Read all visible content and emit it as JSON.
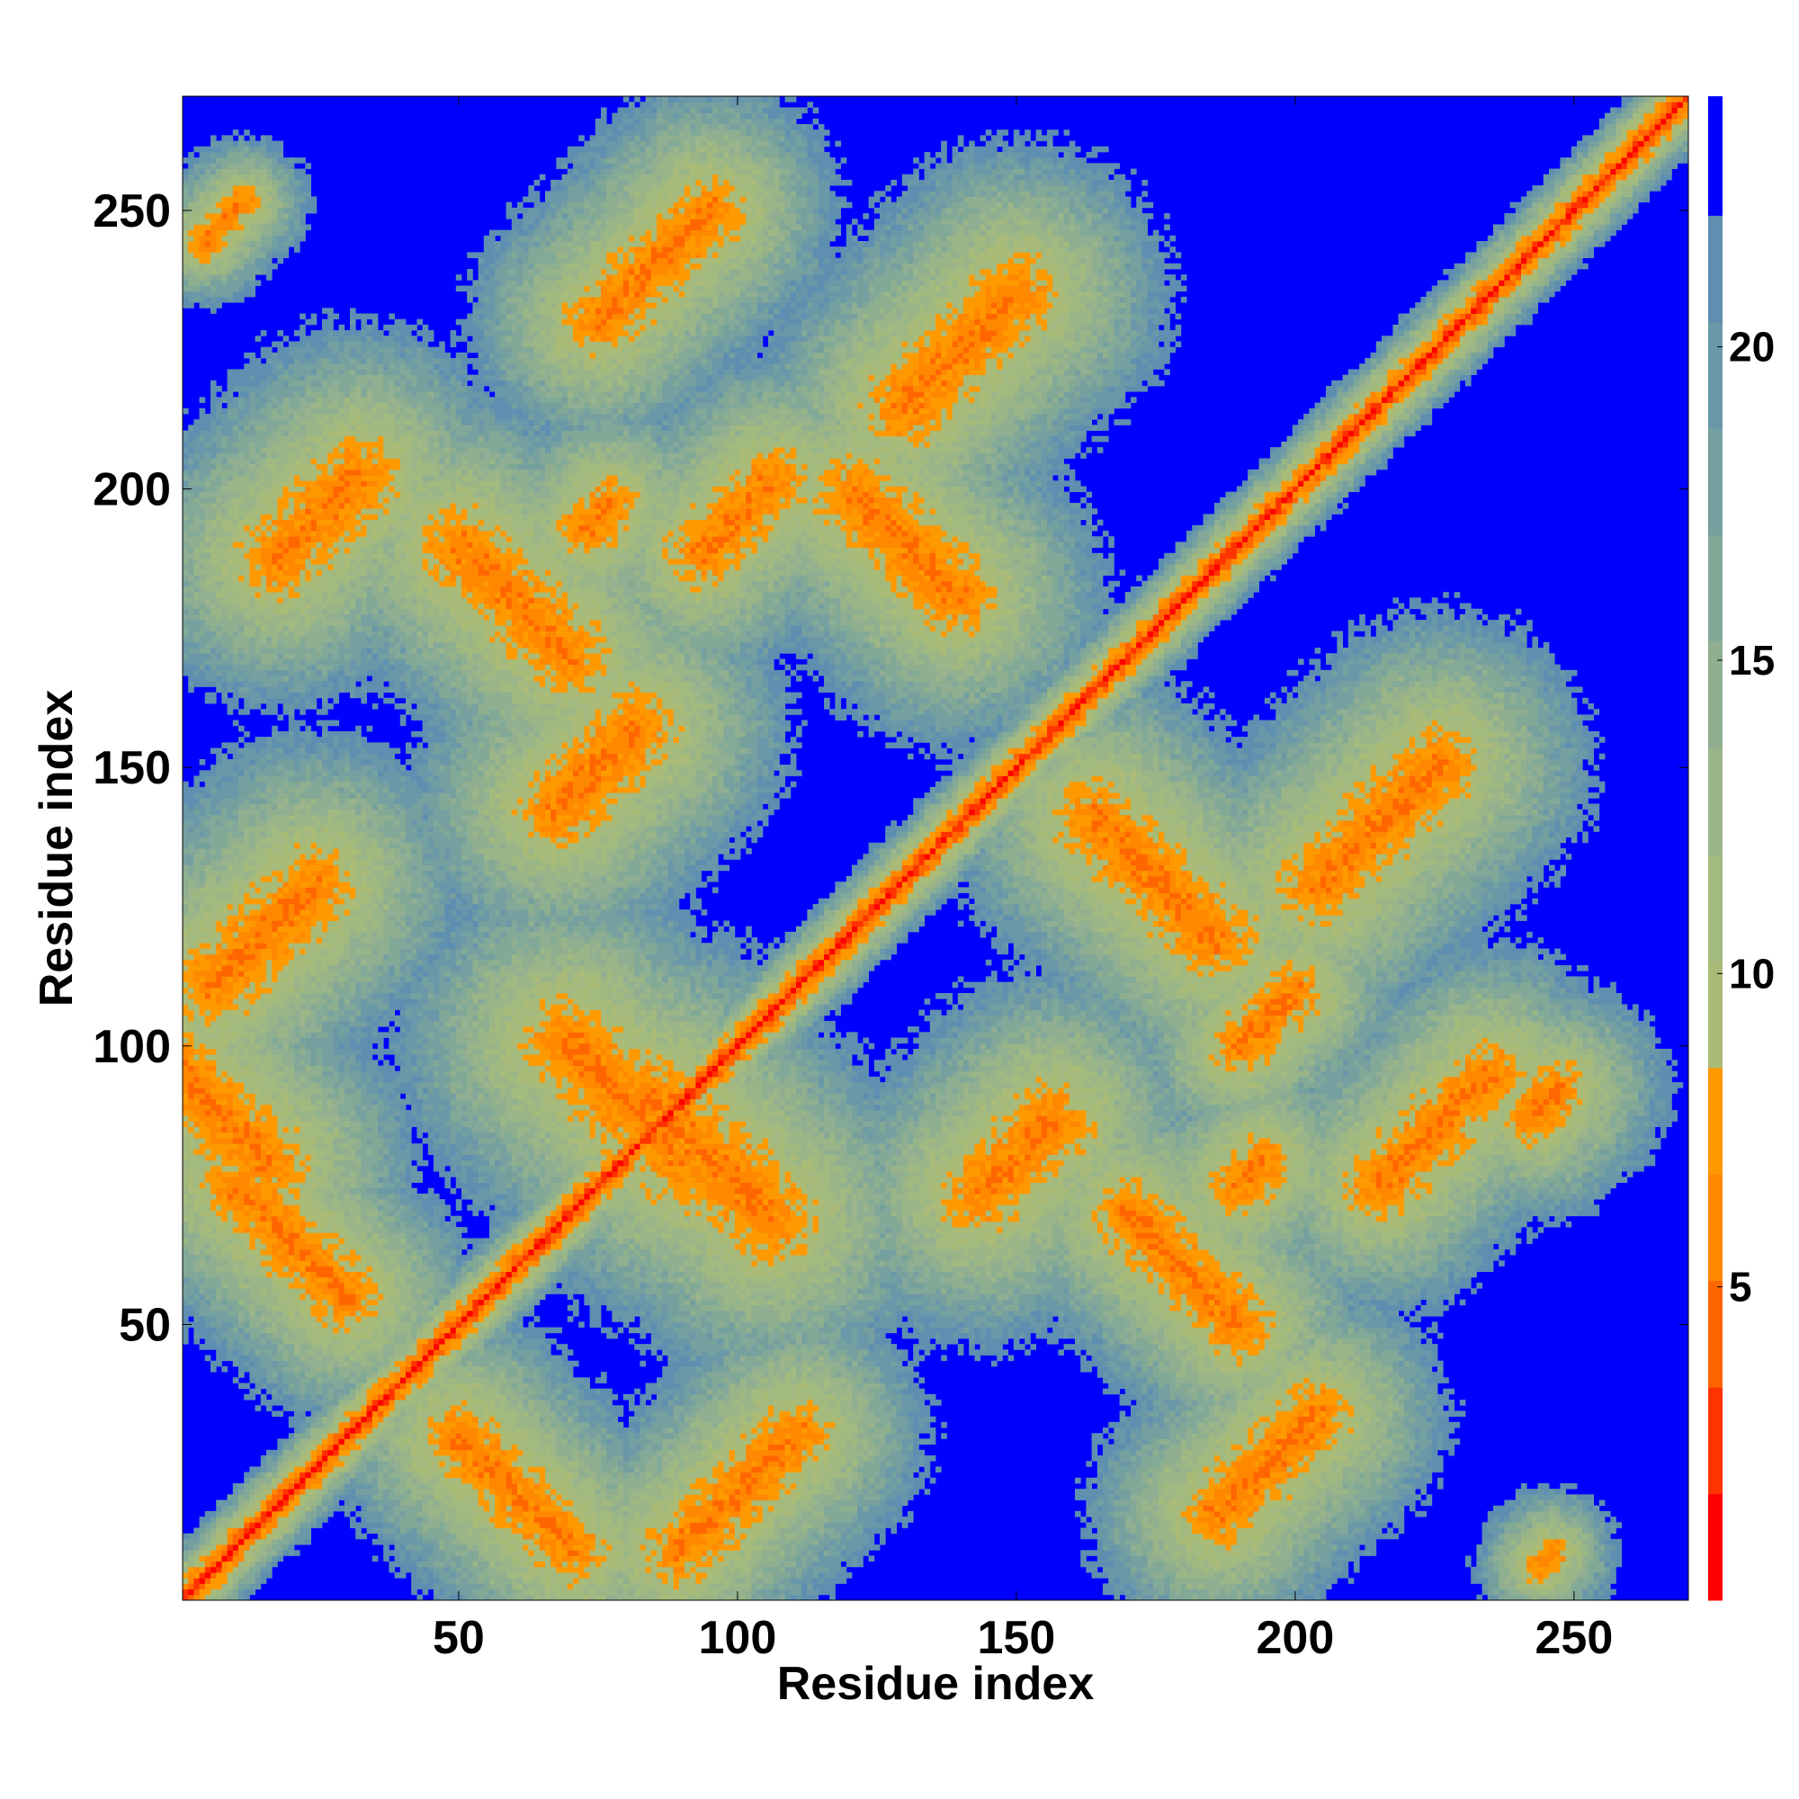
{
  "chart_data": {
    "type": "heatmap",
    "title": "",
    "xlabel": "Residue index",
    "ylabel": "Residue index",
    "n_residues": 270,
    "xlim": [
      1,
      270
    ],
    "ylim": [
      1,
      270
    ],
    "x_ticks": [
      50,
      100,
      150,
      200,
      250
    ],
    "y_ticks": [
      50,
      100,
      150,
      200,
      250
    ],
    "colorbar": {
      "range": [
        0,
        24
      ],
      "ticks": [
        5,
        10,
        15,
        20
      ],
      "levels": [
        {
          "max": 1.7,
          "color": "#ff0000"
        },
        {
          "max": 3.4,
          "color": "#ff3300"
        },
        {
          "max": 5.1,
          "color": "#ff6600"
        },
        {
          "max": 6.8,
          "color": "#ff8800"
        },
        {
          "max": 8.5,
          "color": "#ff9900"
        },
        {
          "max": 10.2,
          "color": "#aabb77"
        },
        {
          "max": 11.9,
          "color": "#a2b980"
        },
        {
          "max": 13.6,
          "color": "#9ab588"
        },
        {
          "max": 15.3,
          "color": "#8faf90"
        },
        {
          "max": 17.0,
          "color": "#82a898"
        },
        {
          "max": 18.7,
          "color": "#76a0a0"
        },
        {
          "max": 20.4,
          "color": "#6a98a8"
        },
        {
          "max": 22.1,
          "color": "#5e8fb0"
        },
        {
          "max": 24.0,
          "color": "#0000ff"
        }
      ]
    },
    "background_color": "#0000ff",
    "contact_blobs": [
      {
        "a": 5,
        "b": 90,
        "dir": -1,
        "len": 30,
        "w": 7
      },
      {
        "a": 15,
        "b": 120,
        "dir": 1,
        "len": 25,
        "w": 7
      },
      {
        "a": 60,
        "b": 180,
        "dir": -1,
        "len": 28,
        "w": 7
      },
      {
        "a": 85,
        "b": 240,
        "dir": 1,
        "len": 28,
        "w": 6
      },
      {
        "a": 100,
        "b": 195,
        "dir": 1,
        "len": 18,
        "w": 6
      },
      {
        "a": 140,
        "b": 225,
        "dir": 1,
        "len": 28,
        "w": 7
      },
      {
        "a": 130,
        "b": 190,
        "dir": -1,
        "len": 25,
        "w": 7
      },
      {
        "a": 175,
        "b": 130,
        "dir": -1,
        "len": 30,
        "w": 7
      },
      {
        "a": 215,
        "b": 140,
        "dir": 1,
        "len": 30,
        "w": 7
      },
      {
        "a": 195,
        "b": 105,
        "dir": 1,
        "len": 14,
        "w": 5
      },
      {
        "a": 20,
        "b": 65,
        "dir": -1,
        "len": 28,
        "w": 6
      },
      {
        "a": 60,
        "b": 20,
        "dir": -1,
        "len": 28,
        "w": 6
      },
      {
        "a": 100,
        "b": 20,
        "dir": 1,
        "len": 30,
        "w": 6
      },
      {
        "a": 180,
        "b": 60,
        "dir": -1,
        "len": 28,
        "w": 6
      },
      {
        "a": 225,
        "b": 85,
        "dir": 1,
        "len": 28,
        "w": 6
      },
      {
        "a": 150,
        "b": 80,
        "dir": 1,
        "len": 18,
        "w": 7
      },
      {
        "a": 195,
        "b": 25,
        "dir": 1,
        "len": 25,
        "w": 6
      },
      {
        "a": 25,
        "b": 195,
        "dir": 1,
        "len": 20,
        "w": 7
      },
      {
        "a": 75,
        "b": 150,
        "dir": 1,
        "len": 20,
        "w": 7
      },
      {
        "a": 80,
        "b": 90,
        "dir": -1,
        "len": 30,
        "w": 8
      },
      {
        "a": 95,
        "b": 80,
        "dir": -1,
        "len": 30,
        "w": 8
      },
      {
        "a": 75,
        "b": 195,
        "dir": 1,
        "len": 6,
        "w": 5
      },
      {
        "a": 192,
        "b": 77,
        "dir": 1,
        "len": 6,
        "w": 5
      },
      {
        "a": 245,
        "b": 90,
        "dir": 1,
        "len": 6,
        "w": 5
      },
      {
        "a": 8,
        "b": 248,
        "dir": 1,
        "len": 10,
        "w": 3
      },
      {
        "a": 245,
        "b": 8,
        "dir": 1,
        "len": 3,
        "w": 3
      }
    ]
  }
}
